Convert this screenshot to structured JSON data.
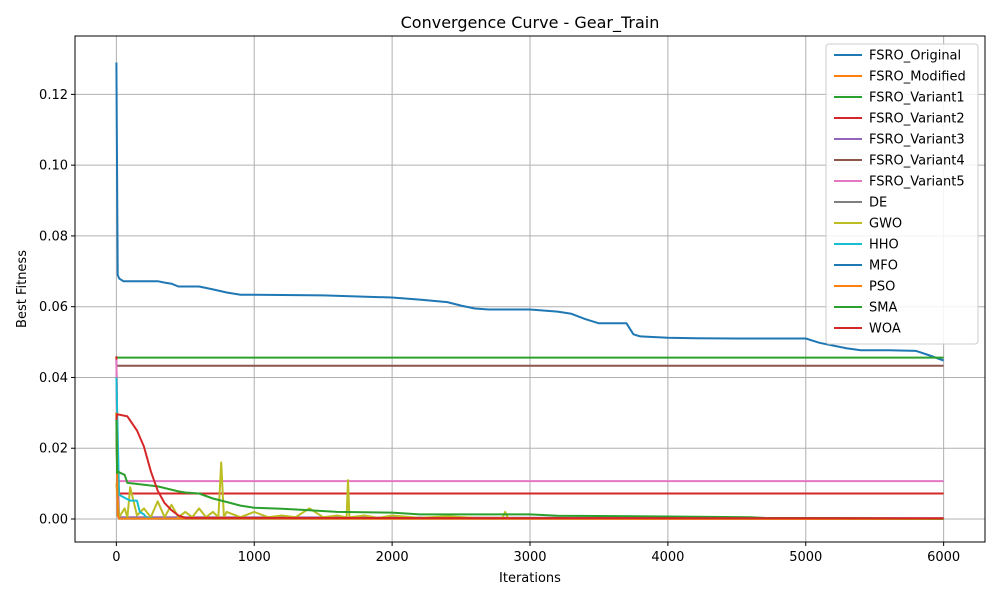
{
  "chart_data": {
    "type": "line",
    "title": "Convergence Curve - Gear_Train",
    "xlabel": "Iterations",
    "ylabel": "Best Fitness",
    "xlim": [
      -300,
      6300
    ],
    "ylim": [
      -0.0065,
      0.1365
    ],
    "xticks": [
      0,
      1000,
      2000,
      3000,
      4000,
      5000,
      6000
    ],
    "xtick_labels": [
      "0",
      "1000",
      "2000",
      "3000",
      "4000",
      "5000",
      "6000"
    ],
    "yticks": [
      0.0,
      0.02,
      0.04,
      0.06,
      0.08,
      0.1,
      0.12
    ],
    "ytick_labels": [
      "0.00",
      "0.02",
      "0.04",
      "0.06",
      "0.08",
      "0.10",
      "0.12"
    ],
    "grid": true,
    "legend_position": "upper right",
    "series": [
      {
        "name": "FSRO_Original",
        "color": "#1f77b4",
        "x": [
          0,
          10,
          20,
          50,
          100,
          200,
          300,
          350,
          400,
          450,
          600,
          700,
          800,
          900,
          1000,
          1500,
          2000,
          2200,
          2400,
          2500,
          2600,
          2700,
          3000,
          3200,
          3300,
          3400,
          3500,
          3600,
          3700,
          3750,
          3800,
          4000,
          4200,
          4500,
          5000,
          5100,
          5200,
          5300,
          5400,
          5600,
          5800,
          5900,
          6000
        ],
        "y": [
          0.129,
          0.069,
          0.068,
          0.0672,
          0.0672,
          0.0672,
          0.0672,
          0.0668,
          0.0665,
          0.0657,
          0.0657,
          0.0649,
          0.064,
          0.0634,
          0.0634,
          0.0632,
          0.0626,
          0.062,
          0.0613,
          0.0603,
          0.0595,
          0.0592,
          0.0592,
          0.0586,
          0.058,
          0.0565,
          0.0553,
          0.0553,
          0.0553,
          0.0522,
          0.0516,
          0.0512,
          0.0511,
          0.051,
          0.051,
          0.0498,
          0.049,
          0.0482,
          0.0477,
          0.0477,
          0.0475,
          0.0462,
          0.0448
        ]
      },
      {
        "name": "FSRO_Modified",
        "color": "#ff7f0e",
        "x": [
          0,
          10,
          20,
          6000
        ],
        "y": [
          0.03,
          0.002,
          0.0003,
          0.0001
        ]
      },
      {
        "name": "FSRO_Variant1",
        "color": "#2ca02c",
        "x": [
          0,
          6000
        ],
        "y": [
          0.0456,
          0.0456
        ]
      },
      {
        "name": "FSRO_Variant2",
        "color": "#d62728",
        "x": [
          0,
          10,
          20,
          6000
        ],
        "y": [
          0.046,
          0.008,
          0.0072,
          0.0072
        ]
      },
      {
        "name": "FSRO_Variant3",
        "color": "#9467bd",
        "x": [
          0,
          10,
          20,
          6000
        ],
        "y": [
          0.045,
          0.012,
          0.0005,
          0.0002
        ]
      },
      {
        "name": "FSRO_Variant4",
        "color": "#8c564b",
        "x": [
          0,
          6000
        ],
        "y": [
          0.0433,
          0.0433
        ]
      },
      {
        "name": "FSRO_Variant5",
        "color": "#e377c2",
        "x": [
          0,
          10,
          20,
          6000
        ],
        "y": [
          0.045,
          0.0107,
          0.0107,
          0.0107
        ]
      },
      {
        "name": "DE",
        "color": "#7f7f7f",
        "x": [
          0,
          10,
          20,
          6000
        ],
        "y": [
          0.03,
          0.001,
          0.0001,
          0.0001
        ]
      },
      {
        "name": "GWO",
        "color": "#bcbd22",
        "x": [
          0,
          20,
          60,
          80,
          100,
          150,
          200,
          250,
          300,
          350,
          400,
          450,
          500,
          550,
          600,
          650,
          700,
          740,
          760,
          780,
          800,
          900,
          1000,
          1100,
          1200,
          1300,
          1400,
          1500,
          1600,
          1670,
          1680,
          1690,
          1800,
          1900,
          2000,
          2200,
          2400,
          2600,
          2800,
          2820,
          2840,
          3000,
          4000,
          5000,
          6000
        ],
        "y": [
          0.01,
          0.0005,
          0.003,
          0.0005,
          0.009,
          0.001,
          0.003,
          0.0005,
          0.005,
          0.0005,
          0.004,
          0.0005,
          0.002,
          0.0005,
          0.003,
          0.0005,
          0.002,
          0.0005,
          0.016,
          0.0005,
          0.002,
          0.0005,
          0.002,
          0.0005,
          0.001,
          0.0005,
          0.003,
          0.0005,
          0.001,
          0.0005,
          0.011,
          0.0005,
          0.001,
          0.0003,
          0.001,
          0.0003,
          0.0008,
          0.0003,
          0.0003,
          0.002,
          0.0003,
          0.0002,
          0.0001,
          0.0001,
          0.0001
        ]
      },
      {
        "name": "HHO",
        "color": "#17becf",
        "x": [
          0,
          20,
          60,
          100,
          150,
          170,
          200,
          220,
          300,
          6000
        ],
        "y": [
          0.04,
          0.0068,
          0.006,
          0.0052,
          0.0052,
          0.002,
          0.0013,
          0.0003,
          0.0001,
          0.0001
        ]
      },
      {
        "name": "MFO",
        "color": "#1f77b4",
        "x": [
          0,
          10,
          20,
          6000
        ],
        "y": [
          0.03,
          0.001,
          0.0001,
          0.0001
        ]
      },
      {
        "name": "PSO",
        "color": "#ff7f0e",
        "x": [
          0,
          10,
          20,
          6000
        ],
        "y": [
          0.03,
          0.001,
          0.0001,
          0.0
        ]
      },
      {
        "name": "SMA",
        "color": "#2ca02c",
        "x": [
          0,
          5,
          10,
          20,
          60,
          80,
          200,
          300,
          450,
          500,
          600,
          700,
          800,
          900,
          1000,
          1200,
          1400,
          1600,
          2000,
          2200,
          3000,
          3200,
          4000,
          4600,
          4700,
          5400,
          6000
        ],
        "y": [
          0.028,
          0.013,
          0.0135,
          0.0132,
          0.0125,
          0.0102,
          0.0097,
          0.0092,
          0.0078,
          0.0075,
          0.0072,
          0.0058,
          0.0048,
          0.0038,
          0.0032,
          0.0029,
          0.0025,
          0.002,
          0.0018,
          0.0013,
          0.0013,
          0.0009,
          0.0007,
          0.0005,
          0.0003,
          0.0002,
          0.0001
        ]
      },
      {
        "name": "WOA",
        "color": "#d62728",
        "x": [
          0,
          5,
          10,
          80,
          150,
          200,
          250,
          300,
          350,
          400,
          450,
          500,
          6000
        ],
        "y": [
          0.028,
          0.0296,
          0.0296,
          0.029,
          0.025,
          0.0205,
          0.0135,
          0.008,
          0.0045,
          0.0025,
          0.001,
          0.0003,
          0.0002
        ]
      }
    ]
  }
}
